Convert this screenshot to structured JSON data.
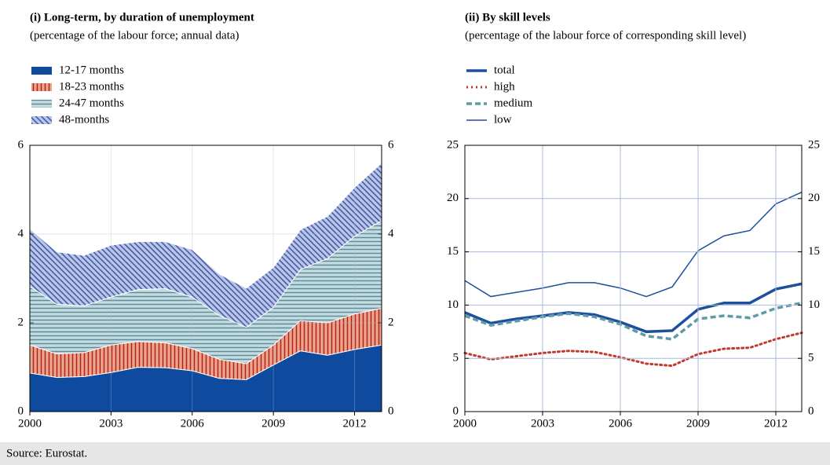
{
  "chart_data": [
    {
      "type": "area",
      "stacked": true,
      "title": "(i) Long-term, by duration of unemployment",
      "subtitle": "(percentage of the labour force; annual data)",
      "x": [
        2000,
        2001,
        2002,
        2003,
        2004,
        2005,
        2006,
        2007,
        2008,
        2009,
        2010,
        2011,
        2012,
        2013
      ],
      "xlim": [
        2000,
        2013
      ],
      "xticks": [
        2000,
        2003,
        2006,
        2009,
        2012
      ],
      "ylim": [
        0,
        6
      ],
      "yticks": [
        0,
        2,
        4,
        6
      ],
      "grid": true,
      "series": [
        {
          "name": "12-17 months",
          "color": "#0e4b9e",
          "hatch": "none",
          "hatch_color": "#0e4b9e",
          "values": [
            0.87,
            0.77,
            0.79,
            0.88,
            1.0,
            0.99,
            0.92,
            0.75,
            0.72,
            1.05,
            1.37,
            1.27,
            1.4,
            1.5
          ]
        },
        {
          "name": "18-23 months",
          "color": "#eaa48c",
          "hatch": "vertical",
          "hatch_color": "#b4221e",
          "values": [
            0.63,
            0.53,
            0.54,
            0.62,
            0.58,
            0.56,
            0.5,
            0.43,
            0.36,
            0.45,
            0.68,
            0.73,
            0.8,
            0.83
          ]
        },
        {
          "name": "24-47 months",
          "color": "#c4dcdf",
          "hatch": "horizontal",
          "hatch_color": "#5b8d9c",
          "values": [
            1.32,
            1.12,
            1.05,
            1.08,
            1.17,
            1.22,
            1.16,
            0.99,
            0.82,
            0.85,
            1.15,
            1.45,
            1.75,
            1.97
          ]
        },
        {
          "name": "48-months",
          "color": "#bcc6e6",
          "hatch": "diagonal",
          "hatch_color": "#3a53a4",
          "values": [
            1.3,
            1.18,
            1.14,
            1.17,
            1.08,
            1.06,
            1.07,
            0.93,
            0.88,
            0.9,
            0.9,
            0.95,
            1.1,
            1.3
          ]
        }
      ]
    },
    {
      "type": "line",
      "title": "(ii) By skill levels",
      "subtitle": "(percentage of the labour force of corresponding skill level)",
      "x": [
        2000,
        2001,
        2002,
        2003,
        2004,
        2005,
        2006,
        2007,
        2008,
        2009,
        2010,
        2011,
        2012,
        2013
      ],
      "xlim": [
        2000,
        2013
      ],
      "xticks": [
        2000,
        2003,
        2006,
        2009,
        2012
      ],
      "ylim": [
        0,
        25
      ],
      "yticks": [
        0,
        5,
        10,
        15,
        20,
        25
      ],
      "grid": true,
      "series": [
        {
          "name": "total",
          "color": "#1d4f9c",
          "dash": "solid",
          "width": 3.5,
          "values": [
            9.3,
            8.3,
            8.7,
            9.0,
            9.3,
            9.1,
            8.4,
            7.5,
            7.6,
            9.6,
            10.2,
            10.2,
            11.5,
            12.0
          ]
        },
        {
          "name": "high",
          "color": "#c0392b",
          "dash": "dotted",
          "width": 3,
          "values": [
            5.5,
            4.9,
            5.2,
            5.5,
            5.7,
            5.6,
            5.1,
            4.5,
            4.3,
            5.4,
            5.9,
            6.0,
            6.8,
            7.4
          ]
        },
        {
          "name": "medium",
          "color": "#5f9aa8",
          "dash": "dashed",
          "width": 3.5,
          "values": [
            9.0,
            8.1,
            8.5,
            8.9,
            9.2,
            8.9,
            8.2,
            7.1,
            6.8,
            8.7,
            9.0,
            8.8,
            9.7,
            10.2
          ]
        },
        {
          "name": "low",
          "color": "#1d4f9c",
          "dash": "solid",
          "width": 1.5,
          "values": [
            12.3,
            10.8,
            11.2,
            11.6,
            12.1,
            12.1,
            11.6,
            10.8,
            11.7,
            15.1,
            16.5,
            17.0,
            19.5,
            20.6
          ]
        }
      ]
    }
  ],
  "source": "Source: Eurostat."
}
